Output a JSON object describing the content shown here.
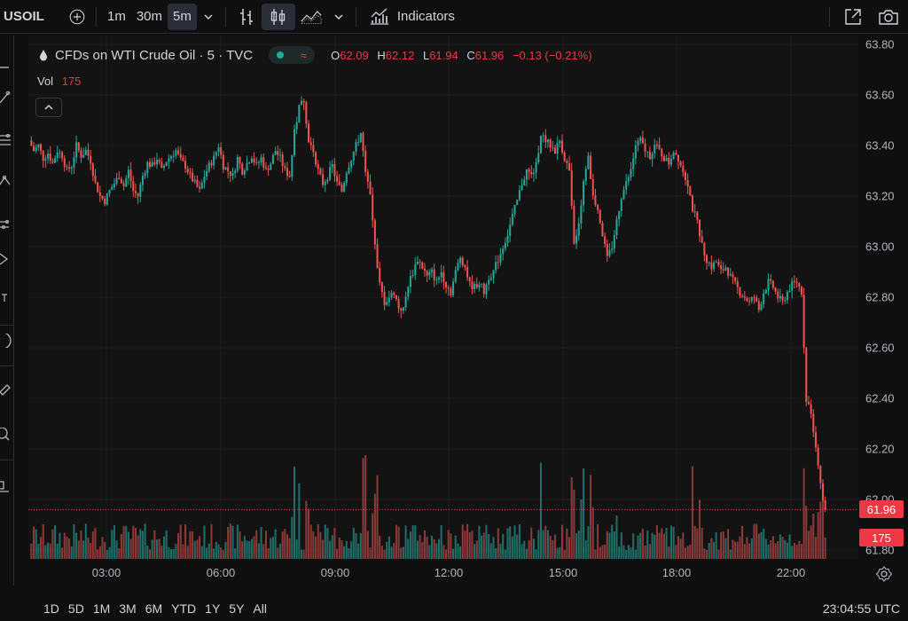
{
  "toolbar": {
    "symbol": "USOIL",
    "intervals": [
      "1m",
      "30m",
      "5m"
    ],
    "active_interval": "5m",
    "indicators_label": "Indicators"
  },
  "legend": {
    "title": "CFDs on WTI Crude Oil · 5 · TVC",
    "o_key": "O",
    "o_val": "62.09",
    "h_key": "H",
    "h_val": "62.12",
    "l_key": "L",
    "l_val": "61.94",
    "c_key": "C",
    "c_val": "61.96",
    "change": "−0.13 (−0.21%)",
    "vol_key": "Vol",
    "vol_val": "175"
  },
  "price_tags": {
    "last": "61.96",
    "volume": "175"
  },
  "bottombar": {
    "ranges": [
      "1D",
      "5D",
      "1M",
      "3M",
      "6M",
      "YTD",
      "1Y",
      "5Y",
      "All"
    ],
    "clock": "23:04:55 UTC"
  },
  "colors": {
    "up": "#26a69a",
    "down": "#ef5350",
    "up_vol": "#1e6f68",
    "down_vol": "#8c3a39",
    "last_price": "#f23645"
  },
  "chart_data": {
    "type": "candlestick",
    "title": "CFDs on WTI Crude Oil · 5 · TVC",
    "y_ticks": [
      "63.80",
      "63.60",
      "63.40",
      "63.20",
      "63.00",
      "62.80",
      "62.60",
      "62.40",
      "62.20",
      "62.00",
      "61.80"
    ],
    "ylim": [
      61.8,
      63.8
    ],
    "x_ticks": [
      "03:00",
      "06:00",
      "09:00",
      "12:00",
      "15:00",
      "18:00",
      "22:00"
    ],
    "last_price": 61.96,
    "close_path": [
      [
        0,
        63.42
      ],
      [
        1,
        63.38
      ],
      [
        2,
        63.4
      ],
      [
        3,
        63.35
      ],
      [
        4,
        63.37
      ],
      [
        5,
        63.33
      ],
      [
        6,
        63.38
      ],
      [
        7,
        63.36
      ],
      [
        8,
        63.3
      ],
      [
        9,
        63.32
      ],
      [
        10,
        63.4
      ],
      [
        11,
        63.36
      ],
      [
        12,
        63.38
      ],
      [
        13,
        63.34
      ],
      [
        14,
        63.25
      ],
      [
        15,
        63.2
      ],
      [
        16,
        63.18
      ],
      [
        17,
        63.22
      ],
      [
        18,
        63.25
      ],
      [
        19,
        63.28
      ],
      [
        20,
        63.24
      ],
      [
        21,
        63.3
      ],
      [
        22,
        63.22
      ],
      [
        23,
        63.2
      ],
      [
        24,
        63.28
      ],
      [
        25,
        63.33
      ],
      [
        26,
        63.32
      ],
      [
        27,
        63.35
      ],
      [
        28,
        63.3
      ],
      [
        29,
        63.34
      ],
      [
        30,
        63.36
      ],
      [
        31,
        63.38
      ],
      [
        32,
        63.34
      ],
      [
        33,
        63.32
      ],
      [
        34,
        63.28
      ],
      [
        35,
        63.25
      ],
      [
        36,
        63.22
      ],
      [
        37,
        63.28
      ],
      [
        38,
        63.32
      ],
      [
        39,
        63.35
      ],
      [
        40,
        63.4
      ],
      [
        41,
        63.32
      ],
      [
        42,
        63.3
      ],
      [
        43,
        63.28
      ],
      [
        44,
        63.35
      ],
      [
        45,
        63.3
      ],
      [
        46,
        63.33
      ],
      [
        47,
        63.36
      ],
      [
        48,
        63.32
      ],
      [
        49,
        63.35
      ],
      [
        50,
        63.3
      ],
      [
        51,
        63.33
      ],
      [
        52,
        63.38
      ],
      [
        53,
        63.35
      ],
      [
        54,
        63.3
      ],
      [
        55,
        63.28
      ],
      [
        56,
        63.45
      ],
      [
        57,
        63.55
      ],
      [
        58,
        63.58
      ],
      [
        59,
        63.42
      ],
      [
        60,
        63.38
      ],
      [
        61,
        63.3
      ],
      [
        62,
        63.25
      ],
      [
        63,
        63.28
      ],
      [
        64,
        63.32
      ],
      [
        65,
        63.25
      ],
      [
        66,
        63.22
      ],
      [
        67,
        63.3
      ],
      [
        68,
        63.35
      ],
      [
        69,
        63.4
      ],
      [
        70,
        63.45
      ],
      [
        71,
        63.3
      ],
      [
        72,
        63.2
      ],
      [
        73,
        63.0
      ],
      [
        74,
        62.85
      ],
      [
        75,
        62.78
      ],
      [
        76,
        62.8
      ],
      [
        77,
        62.82
      ],
      [
        78,
        62.76
      ],
      [
        79,
        62.75
      ],
      [
        80,
        62.85
      ],
      [
        81,
        62.9
      ],
      [
        82,
        62.95
      ],
      [
        83,
        62.92
      ],
      [
        84,
        62.88
      ],
      [
        85,
        62.9
      ],
      [
        86,
        62.86
      ],
      [
        87,
        62.9
      ],
      [
        88,
        62.85
      ],
      [
        89,
        62.82
      ],
      [
        90,
        62.9
      ],
      [
        91,
        62.96
      ],
      [
        92,
        62.92
      ],
      [
        93,
        62.85
      ],
      [
        94,
        62.84
      ],
      [
        95,
        62.86
      ],
      [
        96,
        62.82
      ],
      [
        97,
        62.88
      ],
      [
        98,
        62.9
      ],
      [
        99,
        62.95
      ],
      [
        100,
        63.0
      ],
      [
        101,
        63.05
      ],
      [
        102,
        63.12
      ],
      [
        103,
        63.18
      ],
      [
        104,
        63.25
      ],
      [
        105,
        63.3
      ],
      [
        106,
        63.28
      ],
      [
        107,
        63.32
      ],
      [
        108,
        63.45
      ],
      [
        109,
        63.42
      ],
      [
        110,
        63.4
      ],
      [
        111,
        63.38
      ],
      [
        112,
        63.42
      ],
      [
        113,
        63.35
      ],
      [
        114,
        63.3
      ],
      [
        115,
        63.0
      ],
      [
        116,
        63.1
      ],
      [
        117,
        63.25
      ],
      [
        118,
        63.35
      ],
      [
        119,
        63.2
      ],
      [
        120,
        63.15
      ],
      [
        121,
        63.05
      ],
      [
        122,
        62.95
      ],
      [
        123,
        63.0
      ],
      [
        124,
        63.1
      ],
      [
        125,
        63.2
      ],
      [
        126,
        63.25
      ],
      [
        127,
        63.3
      ],
      [
        128,
        63.4
      ],
      [
        129,
        63.42
      ],
      [
        130,
        63.38
      ],
      [
        131,
        63.36
      ],
      [
        132,
        63.4
      ],
      [
        133,
        63.38
      ],
      [
        134,
        63.35
      ],
      [
        135,
        63.33
      ],
      [
        136,
        63.38
      ],
      [
        137,
        63.35
      ],
      [
        138,
        63.3
      ],
      [
        139,
        63.25
      ],
      [
        140,
        63.15
      ],
      [
        141,
        63.1
      ],
      [
        142,
        63.0
      ],
      [
        143,
        62.95
      ],
      [
        144,
        62.92
      ],
      [
        145,
        62.94
      ],
      [
        146,
        62.9
      ],
      [
        147,
        62.92
      ],
      [
        148,
        62.88
      ],
      [
        149,
        62.85
      ],
      [
        150,
        62.82
      ],
      [
        151,
        62.8
      ],
      [
        152,
        62.78
      ],
      [
        153,
        62.8
      ],
      [
        154,
        62.75
      ],
      [
        155,
        62.82
      ],
      [
        156,
        62.86
      ],
      [
        157,
        62.84
      ],
      [
        158,
        62.8
      ],
      [
        159,
        62.78
      ],
      [
        160,
        62.82
      ],
      [
        161,
        62.85
      ],
      [
        162,
        62.86
      ],
      [
        163,
        62.82
      ],
      [
        164,
        62.4
      ],
      [
        165,
        62.35
      ],
      [
        166,
        62.2
      ],
      [
        167,
        62.05
      ],
      [
        168,
        61.96
      ]
    ]
  }
}
